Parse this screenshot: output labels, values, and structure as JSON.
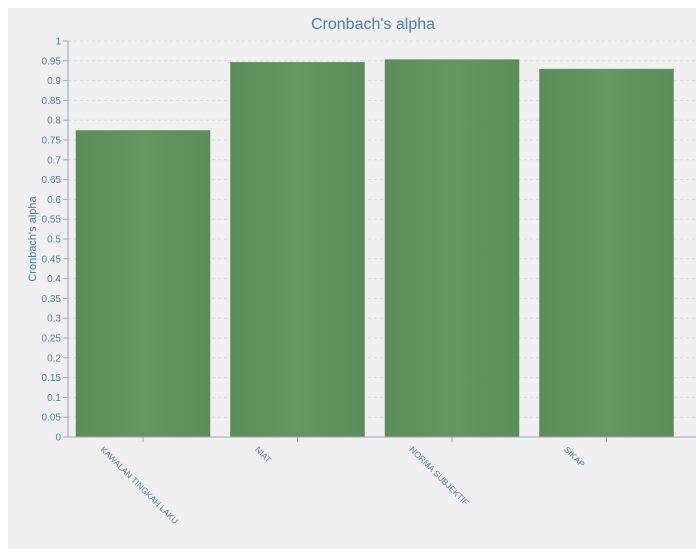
{
  "chart_data": {
    "type": "bar",
    "title": "Cronbach's alpha",
    "ylabel": "Cronbach's alpha",
    "xlabel": "",
    "categories": [
      "KAWALAN TINGKAH LAKU",
      "NIAT",
      "NORMA SUBJEKTIF",
      "SIKAP"
    ],
    "values": [
      0.774,
      0.946,
      0.953,
      0.929
    ],
    "ylim": [
      0,
      1
    ],
    "yticks": [
      "0",
      "0.05",
      "0.1",
      "0.15",
      "0.2",
      "0.25",
      "0.3",
      "0.35",
      "0.4",
      "0.45",
      "0.5",
      "0.55",
      "0.6",
      "0.65",
      "0.7",
      "0.75",
      "0.8",
      "0.85",
      "0.9",
      "0.95",
      "1"
    ],
    "grid": true,
    "bar_color": "#5f925d",
    "text_color": "#4a7fb5",
    "background_color": "#f0f0f0"
  }
}
